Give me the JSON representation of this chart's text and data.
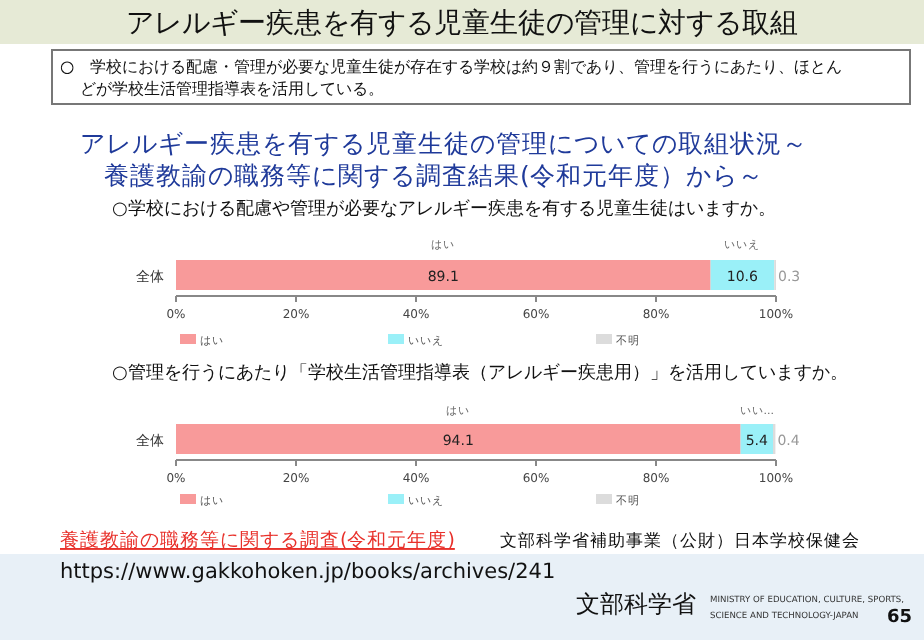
{
  "chart_data": [
    {
      "type": "bar",
      "orientation": "horizontal",
      "stacked": true,
      "title": "○学校における配慮や管理が必要なアレルギー疾患を有する児童生徒はいますか。",
      "categories": [
        "全体"
      ],
      "series": [
        {
          "name": "はい",
          "color": "#f89a9a",
          "values": [
            89.1
          ]
        },
        {
          "name": "いいえ",
          "color": "#9af0f8",
          "values": [
            10.6
          ]
        },
        {
          "name": "不明",
          "color": "#dcdcdc",
          "values": [
            0.3
          ]
        }
      ],
      "xlim": [
        0,
        100
      ],
      "xticks": [
        {
          "value": 0,
          "label": "0%"
        },
        {
          "value": 20,
          "label": "20%"
        },
        {
          "value": 40,
          "label": "40%"
        },
        {
          "value": 60,
          "label": "60%"
        },
        {
          "value": 80,
          "label": "80%"
        },
        {
          "value": 100,
          "label": "100%"
        }
      ],
      "data_labels": true,
      "legend": "bottom",
      "annotations": [
        "アレルギー疾患を有する児童生徒の管理に対する取組",
        "○　学校における配慮・管理が必要な児童生徒が存在する学校は約９割であり、管理を行うにあたり、ほとんどが学校生活管理指導表を活用している。",
        "アレルギー疾患を有する児童生徒の管理についての取組状況～養護教諭の職務等に関する調査結果(令和元年度）から～",
        "はい",
        "いいえ"
      ]
    },
    {
      "type": "bar",
      "orientation": "horizontal",
      "stacked": true,
      "title": "○管理を行うにあたり「学校生活管理指導表（アレルギー疾患用）」を活用していますか。",
      "categories": [
        "全体"
      ],
      "series": [
        {
          "name": "はい",
          "color": "#f89a9a",
          "values": [
            94.1
          ]
        },
        {
          "name": "いいえ",
          "color": "#9af0f8",
          "values": [
            5.4
          ]
        },
        {
          "name": "不明",
          "color": "#dcdcdc",
          "values": [
            0.4
          ]
        }
      ],
      "xlim": [
        0,
        100
      ],
      "xticks": [
        {
          "value": 0,
          "label": "0%"
        },
        {
          "value": 20,
          "label": "20%"
        },
        {
          "value": 40,
          "label": "40%"
        },
        {
          "value": 60,
          "label": "60%"
        },
        {
          "value": 80,
          "label": "80%"
        },
        {
          "value": 100,
          "label": "100%"
        }
      ],
      "data_labels": true,
      "legend": "bottom",
      "annotations": [
        "はい",
        "いい...",
        "養護教諭の職務等に関する調査(令和元年度)",
        "文部科学省補助事業（公財）日本学校保健会",
        "https://www.gakkohoken.jp/books/archives/241",
        "文部科学省",
        "MINISTRY OF EDUCATION, CULTURE, SPORTS,\nSCIENCE AND TECHNOLOGY-JAPAN",
        "65"
      ]
    }
  ]
}
